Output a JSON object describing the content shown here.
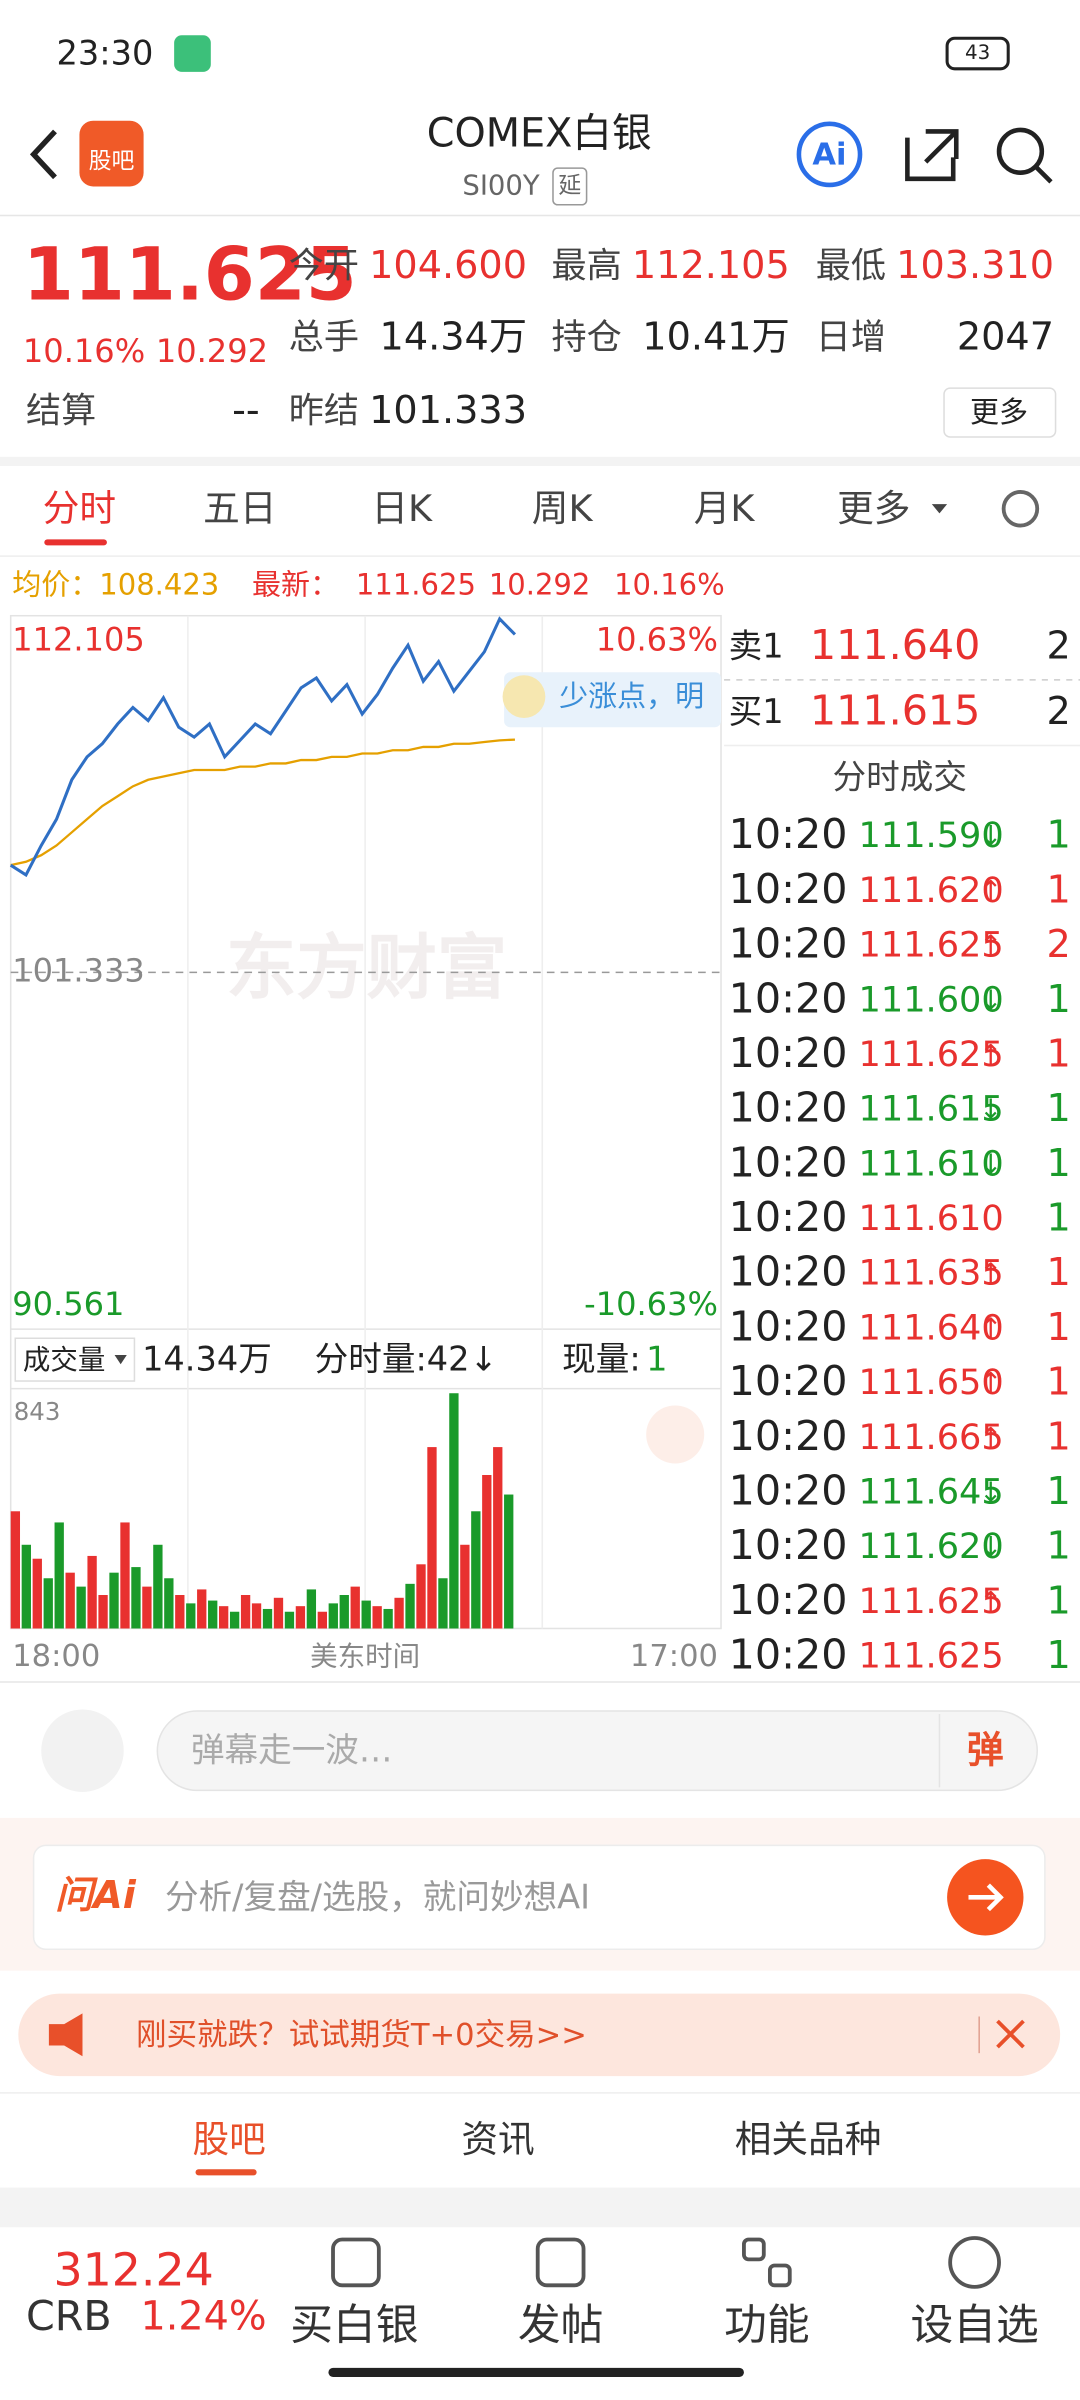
{
  "status_bar": {
    "time": "23:30",
    "battery": "43"
  },
  "header": {
    "logo": "股吧",
    "title": "COMEX白银",
    "code": "SI00Y",
    "tag": "延",
    "ai": "Ai"
  },
  "quote": {
    "price": "111.625",
    "change_pct": "10.16%",
    "change": "10.292",
    "fields": [
      {
        "label": "今开",
        "value": "104.600",
        "color": "#e8312f"
      },
      {
        "label": "最高",
        "value": "112.105",
        "color": "#e8312f"
      },
      {
        "label": "最低",
        "value": "103.310",
        "color": "#e8312f"
      },
      {
        "label": "总手",
        "value": "14.34万",
        "color": "#222222"
      },
      {
        "label": "持仓",
        "value": "10.41万",
        "color": "#222222"
      },
      {
        "label": "日增",
        "value": "2047",
        "color": "#222222"
      },
      {
        "label": "结算",
        "value": "--",
        "color": "#222222"
      },
      {
        "label": "昨结",
        "value": "101.333",
        "color": "#222222"
      }
    ],
    "more": "更多"
  },
  "tabs": [
    "分时",
    "五日",
    "日K",
    "周K",
    "月K",
    "更多"
  ],
  "info_bar": {
    "avg_label": "均价：",
    "avg": "108.423",
    "last_label": "最新：",
    "last": "111.625",
    "change": "10.292",
    "change_pct": "10.16%"
  },
  "price_chart": {
    "ylim": [
      90.561,
      112.105
    ],
    "yticks": [
      112.105,
      101.333,
      90.561
    ],
    "pct_ticks": [
      {
        "value": 10.63,
        "label": "10.63%"
      },
      {
        "value": -10.63,
        "label": "-10.63%"
      }
    ],
    "price_color": "#2f6fc4",
    "avg_color": "#e5a000",
    "price": [
      104.6,
      104.3,
      105.2,
      106.0,
      107.2,
      107.9,
      108.3,
      108.9,
      109.4,
      109.0,
      109.7,
      108.8,
      108.5,
      108.9,
      107.9,
      108.4,
      108.9,
      108.6,
      109.3,
      110.0,
      110.3,
      109.6,
      110.1,
      109.2,
      109.8,
      110.6,
      111.3,
      110.2,
      110.8,
      109.9,
      110.5,
      111.1,
      112.1,
      111.625
    ],
    "avg": [
      104.6,
      104.7,
      104.9,
      105.2,
      105.6,
      106.0,
      106.4,
      106.7,
      107.0,
      107.2,
      107.3,
      107.4,
      107.5,
      107.5,
      107.5,
      107.6,
      107.6,
      107.7,
      107.7,
      107.8,
      107.8,
      107.9,
      107.9,
      108.0,
      108.0,
      108.1,
      108.1,
      108.2,
      108.2,
      108.3,
      108.3,
      108.35,
      108.4,
      108.423
    ]
  },
  "volume_chart": {
    "label": "成交量",
    "total": "14.34万",
    "tick_volume": "分时量:42↓",
    "current_label": "现量:",
    "current": "1",
    "ylim": [
      0,
      843
    ],
    "yticks": [
      843
    ],
    "values": [
      420,
      300,
      250,
      180,
      380,
      200,
      150,
      260,
      120,
      200,
      380,
      220,
      150,
      300,
      180,
      120,
      90,
      140,
      100,
      80,
      60,
      120,
      90,
      70,
      110,
      60,
      80,
      140,
      60,
      90,
      120,
      150,
      100,
      80,
      70,
      110,
      160,
      230,
      650,
      180,
      843,
      300,
      420,
      550,
      650,
      480
    ],
    "colors": [
      "#e8312f",
      "#1a9a2a",
      "#e8312f",
      "#1a9a2a",
      "#1a9a2a",
      "#e8312f",
      "#1a9a2a",
      "#e8312f",
      "#e8312f",
      "#1a9a2a",
      "#e8312f",
      "#1a9a2a",
      "#e8312f",
      "#1a9a2a",
      "#1a9a2a",
      "#e8312f",
      "#1a9a2a",
      "#e8312f",
      "#1a9a2a",
      "#e8312f",
      "#1a9a2a",
      "#e8312f",
      "#e8312f",
      "#1a9a2a",
      "#e8312f",
      "#1a9a2a",
      "#e8312f",
      "#1a9a2a",
      "#e8312f",
      "#1a9a2a",
      "#1a9a2a",
      "#e8312f",
      "#1a9a2a",
      "#e8312f",
      "#1a9a2a",
      "#e8312f",
      "#1a9a2a",
      "#e8312f",
      "#e8312f",
      "#1a9a2a",
      "#1a9a2a",
      "#e8312f",
      "#1a9a2a",
      "#e8312f",
      "#e8312f",
      "#1a9a2a"
    ]
  },
  "time_axis": [
    "18:00",
    "美东时间",
    "17:00"
  ],
  "watermark": "东方财富",
  "bubble": "少涨点，明",
  "order_book": [
    {
      "label": "卖1",
      "price": "111.640",
      "volume": "2"
    },
    {
      "label": "买1",
      "price": "111.615",
      "volume": "2"
    }
  ],
  "trades": {
    "title": "分时成交",
    "rows": [
      {
        "time": "10:20",
        "price": "111.590",
        "arrow": "↓",
        "volume": "1",
        "color": "#1a9a2a"
      },
      {
        "time": "10:20",
        "price": "111.620",
        "arrow": "↑",
        "volume": "1",
        "color": "#e8312f"
      },
      {
        "time": "10:20",
        "price": "111.625",
        "arrow": "↑",
        "volume": "2",
        "color": "#e8312f"
      },
      {
        "time": "10:20",
        "price": "111.600",
        "arrow": "↓",
        "volume": "1",
        "color": "#1a9a2a"
      },
      {
        "time": "10:20",
        "price": "111.625",
        "arrow": "↑",
        "volume": "1",
        "color": "#e8312f"
      },
      {
        "time": "10:20",
        "price": "111.615",
        "arrow": "↓",
        "volume": "1",
        "color": "#1a9a2a"
      },
      {
        "time": "10:20",
        "price": "111.610",
        "arrow": "↓",
        "volume": "1",
        "color": "#1a9a2a"
      },
      {
        "time": "10:20",
        "price": "111.610",
        "volume": "1",
        "color": "#1a9a2a"
      },
      {
        "time": "10:20",
        "price": "111.635",
        "arrow": "↑",
        "volume": "1",
        "color": "#e8312f"
      },
      {
        "time": "10:20",
        "price": "111.640",
        "arrow": "↑",
        "volume": "1",
        "color": "#e8312f"
      },
      {
        "time": "10:20",
        "price": "111.650",
        "arrow": "↑",
        "volume": "1",
        "color": "#e8312f"
      },
      {
        "time": "10:20",
        "price": "111.665",
        "arrow": "↑",
        "volume": "1",
        "color": "#e8312f"
      },
      {
        "time": "10:20",
        "price": "111.645",
        "arrow": "↓",
        "volume": "1",
        "color": "#1a9a2a"
      },
      {
        "time": "10:20",
        "price": "111.620",
        "arrow": "↓",
        "volume": "1",
        "color": "#1a9a2a"
      },
      {
        "time": "10:20",
        "price": "111.625",
        "arrow": "↑",
        "volume": "1",
        "color": "#1a9a2a"
      },
      {
        "time": "10:20",
        "price": "111.625",
        "volume": "1",
        "color": "#1a9a2a"
      }
    ]
  },
  "danmaku": {
    "placeholder": "弹幕走一波…",
    "button": "弹"
  },
  "ai_bar": {
    "brand": "问Ai",
    "placeholder": "分析/复盘/选股，就问妙想AI"
  },
  "promo": "刚买就跌？试试期货T+0交易>>",
  "bottom_tabs": [
    "股吧",
    "资讯",
    "相关品种"
  ],
  "nav": {
    "crb_price": "312.24",
    "crb": "CRB",
    "crb_pct": "1.24%",
    "items": [
      "买白银",
      "发帖",
      "功能",
      "设自选"
    ]
  }
}
